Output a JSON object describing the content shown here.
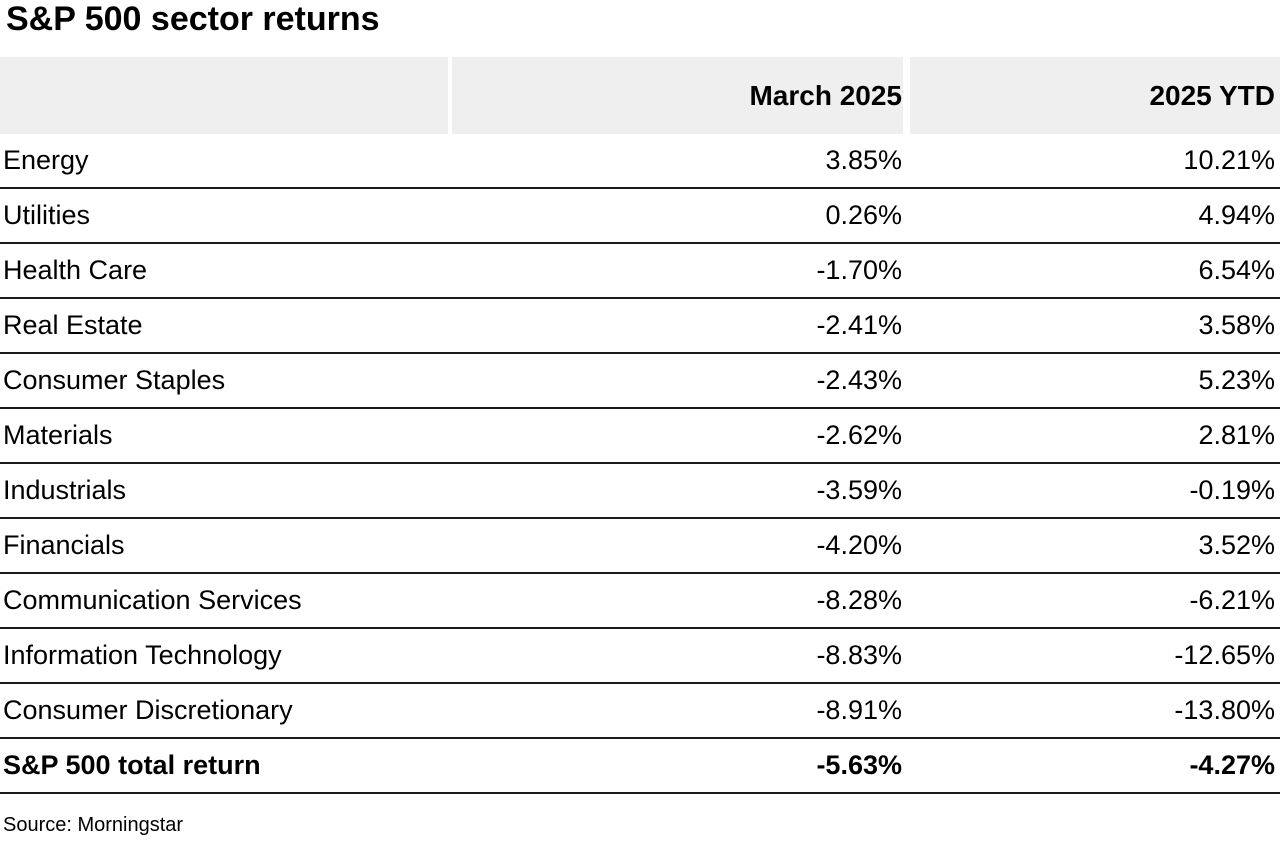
{
  "title": "S&P 500 sector returns",
  "table": {
    "columns": [
      "",
      "March 2025",
      "2025 YTD"
    ],
    "rows": [
      {
        "sector": "Energy",
        "march": "3.85%",
        "ytd": "10.21%"
      },
      {
        "sector": "Utilities",
        "march": "0.26%",
        "ytd": "4.94%"
      },
      {
        "sector": "Health Care",
        "march": "-1.70%",
        "ytd": "6.54%"
      },
      {
        "sector": "Real Estate",
        "march": "-2.41%",
        "ytd": "3.58%"
      },
      {
        "sector": "Consumer Staples",
        "march": "-2.43%",
        "ytd": "5.23%"
      },
      {
        "sector": "Materials",
        "march": "-2.62%",
        "ytd": "2.81%"
      },
      {
        "sector": "Industrials",
        "march": "-3.59%",
        "ytd": "-0.19%"
      },
      {
        "sector": "Financials",
        "march": "-4.20%",
        "ytd": "3.52%"
      },
      {
        "sector": "Communication Services",
        "march": "-8.28%",
        "ytd": "-6.21%"
      },
      {
        "sector": "Information Technology",
        "march": "-8.83%",
        "ytd": "-12.65%"
      },
      {
        "sector": "Consumer Discretionary",
        "march": "-8.91%",
        "ytd": "-13.80%"
      },
      {
        "sector": "S&P 500 total return",
        "march": "-5.63%",
        "ytd": "-4.27%"
      }
    ]
  },
  "source": "Source: Morningstar",
  "colors": {
    "header_bg": "#efefef",
    "row_line": "#1a1a1a",
    "text": "#000000",
    "background": "#ffffff"
  },
  "chart_data": {
    "type": "table",
    "title": "S&P 500 sector returns",
    "unit": "%",
    "categories": [
      "Energy",
      "Utilities",
      "Health Care",
      "Real Estate",
      "Consumer Staples",
      "Materials",
      "Industrials",
      "Financials",
      "Communication Services",
      "Information Technology",
      "Consumer Discretionary"
    ],
    "series": [
      {
        "name": "March 2025",
        "values": [
          3.85,
          0.26,
          -1.7,
          -2.41,
          -2.43,
          -2.62,
          -3.59,
          -4.2,
          -8.28,
          -8.83,
          -8.91
        ]
      },
      {
        "name": "2025 YTD",
        "values": [
          10.21,
          4.94,
          6.54,
          3.58,
          5.23,
          2.81,
          -0.19,
          3.52,
          -6.21,
          -12.65,
          -13.8
        ]
      }
    ],
    "total_row": {
      "label": "S&P 500 total return",
      "march_2025": -5.63,
      "ytd_2025": -4.27
    },
    "source": "Source: Morningstar",
    "layout": {
      "value_alignment": "right",
      "header_background": "#efefef",
      "row_separators": true
    }
  }
}
